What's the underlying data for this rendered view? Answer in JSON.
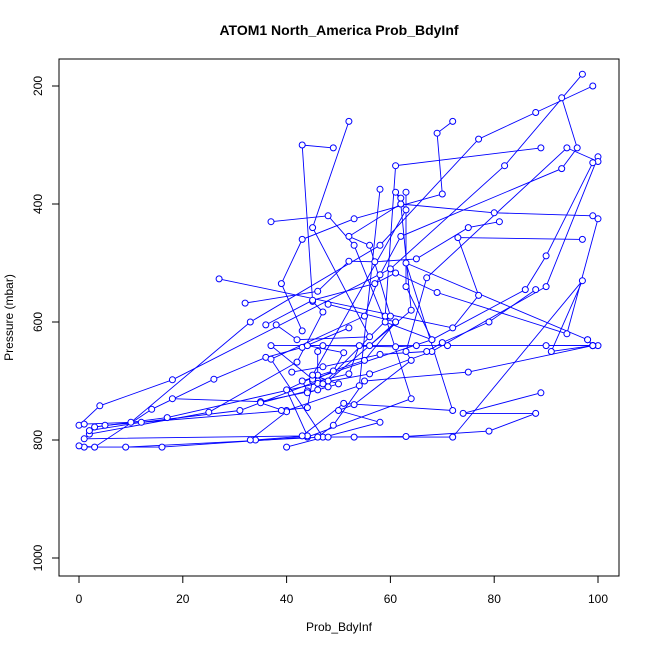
{
  "chart_data": {
    "type": "line",
    "title": "ATOM1 North_America Prob_BdyInf",
    "xlabel": "Prob_BdyInf",
    "ylabel": "Pressure (mbar)",
    "xlim": [
      0,
      100
    ],
    "ylim": [
      1000,
      200
    ],
    "y_axis_inverted": true,
    "x_ticks": [
      0,
      20,
      40,
      60,
      80,
      100
    ],
    "y_ticks": [
      200,
      400,
      600,
      800,
      1000
    ],
    "grid": false,
    "legend": "none",
    "colors": {
      "series": "#0000ff",
      "axis": "#000000"
    },
    "markers": "open-circle",
    "series": [
      {
        "x": [
          0,
          4,
          18,
          60,
          82,
          97
        ],
        "y": [
          775,
          742,
          698,
          510,
          335,
          180
        ]
      },
      {
        "x": [
          1,
          10,
          33,
          58,
          77,
          88,
          99
        ],
        "y": [
          773,
          770,
          600,
          470,
          290,
          245,
          200
        ]
      },
      {
        "x": [
          3,
          17,
          48,
          64,
          62
        ],
        "y": [
          778,
          762,
          700,
          580,
          400
        ]
      },
      {
        "x": [
          2,
          25,
          42,
          47,
          45,
          43,
          49
        ],
        "y": [
          790,
          753,
          668,
          583,
          565,
          300,
          305
        ]
      },
      {
        "x": [
          5,
          40,
          54,
          58
        ],
        "y": [
          775,
          750,
          708,
          375
        ]
      },
      {
        "x": [
          1,
          16,
          44,
          64,
          59,
          61,
          89
        ],
        "y": [
          812,
          812,
          795,
          730,
          590,
          335,
          305
        ]
      },
      {
        "x": [
          0,
          3,
          14,
          26,
          36,
          43,
          52
        ],
        "y": [
          810,
          812,
          748,
          697,
          660,
          643,
          610
        ]
      },
      {
        "x": [
          9,
          47,
          37,
          55,
          58,
          62,
          93,
          96,
          93
        ],
        "y": [
          812,
          795,
          663,
          590,
          520,
          455,
          340,
          305,
          220
        ]
      },
      {
        "x": [
          2,
          12,
          31,
          46,
          52,
          54,
          56,
          61,
          48
        ],
        "y": [
          784,
          770,
          750,
          700,
          688,
          640,
          640,
          600,
          570
        ]
      },
      {
        "x": [
          34,
          44,
          40,
          46,
          46
        ],
        "y": [
          800,
          793,
          715,
          690,
          650
        ]
      },
      {
        "x": [
          18,
          35,
          46,
          46,
          56,
          68,
          90,
          100
        ],
        "y": [
          730,
          735,
          715,
          704,
          688,
          650,
          540,
          320
        ]
      },
      {
        "x": [
          40,
          58,
          50,
          53,
          64,
          63,
          67,
          94,
          100
        ],
        "y": [
          812,
          770,
          750,
          740,
          665,
          650,
          525,
          305,
          328
        ]
      },
      {
        "x": [
          33,
          40,
          35,
          44,
          43,
          55,
          61
        ],
        "y": [
          800,
          752,
          737,
          717,
          700,
          665,
          600
        ]
      },
      {
        "x": [
          1,
          43,
          51,
          72,
          63,
          98,
          99
        ],
        "y": [
          798,
          793,
          738,
          750,
          500,
          630,
          640
        ]
      },
      {
        "x": [
          46,
          49,
          55,
          75,
          99,
          90,
          100
        ],
        "y": [
          795,
          775,
          700,
          685,
          640,
          640,
          640
        ]
      },
      {
        "x": [
          39,
          44,
          45,
          37,
          47,
          61,
          65
        ],
        "y": [
          750,
          745,
          697,
          640,
          640,
          642,
          640
        ]
      },
      {
        "x": [
          53,
          72,
          97,
          91,
          99
        ],
        "y": [
          795,
          795,
          530,
          650,
          640
        ]
      },
      {
        "x": [
          48,
          63,
          79,
          88,
          74,
          89
        ],
        "y": [
          795,
          794,
          785,
          755,
          755,
          720
        ]
      },
      {
        "x": [
          45,
          49,
          51,
          44,
          71,
          99,
          98
        ],
        "y": [
          700,
          683,
          652,
          640,
          640,
          640,
          630
        ]
      },
      {
        "x": [
          27,
          72,
          77,
          73,
          97
        ],
        "y": [
          527,
          610,
          555,
          457,
          460
        ]
      },
      {
        "x": [
          43,
          39,
          43,
          53,
          70,
          69,
          72
        ],
        "y": [
          615,
          535,
          460,
          425,
          383,
          280,
          260
        ]
      },
      {
        "x": [
          45,
          68,
          86,
          90,
          99
        ],
        "y": [
          697,
          630,
          545,
          488,
          330
        ]
      },
      {
        "x": [
          47,
          60,
          56,
          52,
          62,
          80,
          99
        ],
        "y": [
          705,
          590,
          470,
          455,
          400,
          415,
          420
        ]
      },
      {
        "x": [
          37,
          48,
          53,
          59,
          68,
          63,
          63
        ],
        "y": [
          430,
          420,
          470,
          600,
          630,
          540,
          380
        ]
      },
      {
        "x": [
          32,
          46,
          52,
          57,
          65,
          75,
          81
        ],
        "y": [
          568,
          548,
          497,
          498,
          493,
          440,
          430
        ]
      },
      {
        "x": [
          38,
          42,
          56,
          45,
          52
        ],
        "y": [
          605,
          630,
          625,
          440,
          260
        ]
      },
      {
        "x": [
          44,
          48,
          50,
          45,
          63,
          61,
          62
        ],
        "y": [
          720,
          710,
          705,
          690,
          410,
          380,
          390
        ]
      },
      {
        "x": [
          36,
          45,
          57,
          61,
          69,
          94,
          100
        ],
        "y": [
          605,
          563,
          535,
          517,
          550,
          620,
          425
        ]
      },
      {
        "x": [
          41,
          47,
          58,
          67,
          70,
          79,
          88
        ],
        "y": [
          685,
          676,
          655,
          650,
          635,
          600,
          545
        ]
      }
    ]
  }
}
